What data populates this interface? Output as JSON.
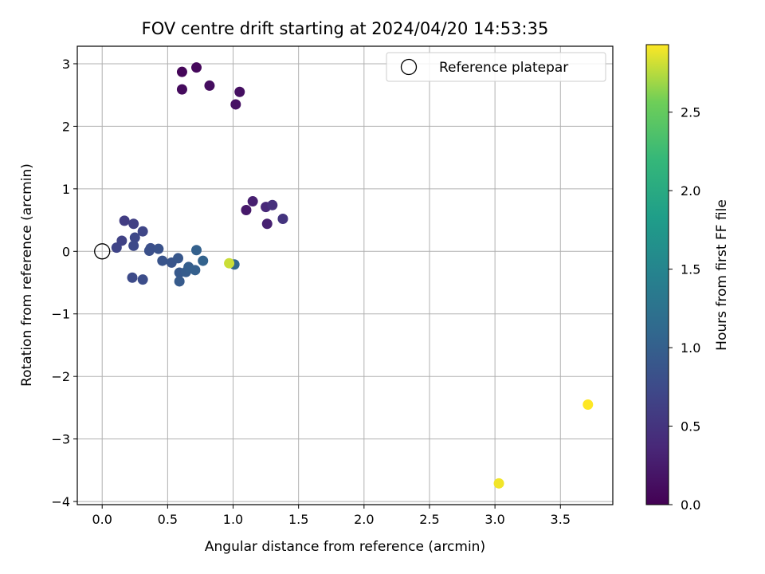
{
  "chart_data": {
    "type": "scatter",
    "title": "FOV centre drift starting at 2024/04/20 14:53:35",
    "xlabel": "Angular distance from reference (arcmin)",
    "ylabel": "Rotation from reference (arcmin)",
    "xlim": [
      -0.19,
      3.9
    ],
    "ylim": [
      -4.05,
      3.28
    ],
    "xticks": [
      0.0,
      0.5,
      1.0,
      1.5,
      2.0,
      2.5,
      3.0,
      3.5
    ],
    "xtick_labels": [
      "0.0",
      "0.5",
      "1.0",
      "1.5",
      "2.0",
      "2.5",
      "3.0",
      "3.5"
    ],
    "yticks": [
      -4,
      -3,
      -2,
      -1,
      0,
      1,
      2,
      3
    ],
    "ytick_labels": [
      "−4",
      "−3",
      "−2",
      "−1",
      "0",
      "1",
      "2",
      "3"
    ],
    "grid": true,
    "legend": {
      "placement": "top-right",
      "entries": [
        "Reference platepar"
      ]
    },
    "reference_point": {
      "x": 0.0,
      "y": 0.0
    },
    "colorbar": {
      "label": "Hours from first FF file",
      "colormap": "viridis",
      "range": [
        0.0,
        2.93
      ],
      "ticks": [
        0.0,
        0.5,
        1.0,
        1.5,
        2.0,
        2.5
      ],
      "tick_labels": [
        "0.0",
        "0.5",
        "1.0",
        "1.5",
        "2.0",
        "2.5"
      ]
    },
    "points": [
      {
        "x": 0.61,
        "y": 2.87,
        "hours": 0.05
      },
      {
        "x": 0.72,
        "y": 2.94,
        "hours": 0.07
      },
      {
        "x": 0.61,
        "y": 2.59,
        "hours": 0.09
      },
      {
        "x": 0.82,
        "y": 2.65,
        "hours": 0.11
      },
      {
        "x": 1.05,
        "y": 2.55,
        "hours": 0.13
      },
      {
        "x": 1.02,
        "y": 2.35,
        "hours": 0.15
      },
      {
        "x": 1.1,
        "y": 0.66,
        "hours": 0.22
      },
      {
        "x": 1.15,
        "y": 0.8,
        "hours": 0.28
      },
      {
        "x": 1.26,
        "y": 0.44,
        "hours": 0.3
      },
      {
        "x": 1.25,
        "y": 0.71,
        "hours": 0.38
      },
      {
        "x": 1.3,
        "y": 0.74,
        "hours": 0.45
      },
      {
        "x": 1.38,
        "y": 0.52,
        "hours": 0.5
      },
      {
        "x": 0.17,
        "y": 0.49,
        "hours": 0.6
      },
      {
        "x": 0.24,
        "y": 0.44,
        "hours": 0.63
      },
      {
        "x": 0.15,
        "y": 0.17,
        "hours": 0.65
      },
      {
        "x": 0.11,
        "y": 0.06,
        "hours": 0.68
      },
      {
        "x": 0.31,
        "y": 0.32,
        "hours": 0.7
      },
      {
        "x": 0.25,
        "y": 0.22,
        "hours": 0.72
      },
      {
        "x": 0.24,
        "y": 0.09,
        "hours": 0.74
      },
      {
        "x": 0.23,
        "y": -0.42,
        "hours": 0.76
      },
      {
        "x": 0.31,
        "y": -0.45,
        "hours": 0.78
      },
      {
        "x": 0.37,
        "y": 0.05,
        "hours": 0.8
      },
      {
        "x": 0.36,
        "y": 0.01,
        "hours": 0.82
      },
      {
        "x": 0.43,
        "y": 0.04,
        "hours": 0.84
      },
      {
        "x": 0.46,
        "y": -0.15,
        "hours": 0.86
      },
      {
        "x": 0.53,
        "y": -0.18,
        "hours": 0.88
      },
      {
        "x": 0.58,
        "y": -0.11,
        "hours": 0.9
      },
      {
        "x": 0.59,
        "y": -0.34,
        "hours": 0.92
      },
      {
        "x": 0.59,
        "y": -0.48,
        "hours": 0.94
      },
      {
        "x": 0.64,
        "y": -0.33,
        "hours": 0.96
      },
      {
        "x": 0.66,
        "y": -0.25,
        "hours": 0.98
      },
      {
        "x": 0.71,
        "y": -0.3,
        "hours": 1.0
      },
      {
        "x": 0.72,
        "y": 0.02,
        "hours": 1.02
      },
      {
        "x": 0.77,
        "y": -0.15,
        "hours": 1.04
      },
      {
        "x": 1.01,
        "y": -0.21,
        "hours": 1.1
      },
      {
        "x": 0.97,
        "y": -0.19,
        "hours": 2.8
      },
      {
        "x": 3.03,
        "y": -3.71,
        "hours": 2.9
      },
      {
        "x": 3.71,
        "y": -2.45,
        "hours": 2.93
      }
    ]
  }
}
